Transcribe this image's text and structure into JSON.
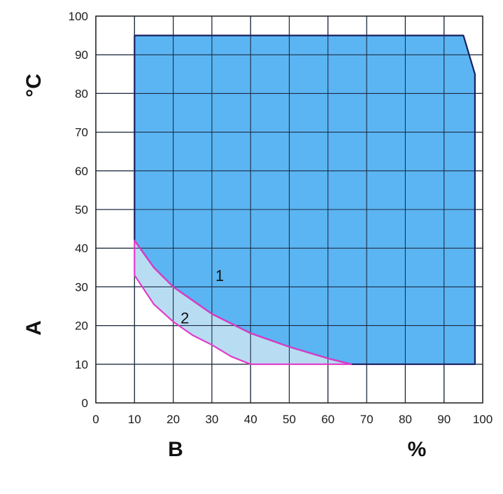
{
  "chart_data": {
    "type": "area",
    "xlabel": "B",
    "ylabel": "A",
    "x_unit": "%",
    "y_unit": "°C",
    "xlim": [
      0,
      100
    ],
    "ylim": [
      0,
      100
    ],
    "x_ticks": [
      "0",
      "10",
      "20",
      "30",
      "40",
      "50",
      "60",
      "70",
      "80",
      "90",
      "100"
    ],
    "y_ticks": [
      "0",
      "10",
      "20",
      "30",
      "40",
      "50",
      "60",
      "70",
      "80",
      "90",
      "100"
    ],
    "grid": true,
    "regions": [
      {
        "label": "1",
        "label_at": [
          32,
          33
        ],
        "fill": "#5bb5f2",
        "stroke": "#1a1f5e",
        "points": [
          [
            10,
            95
          ],
          [
            95,
            95
          ],
          [
            98,
            85
          ],
          [
            98,
            10
          ],
          [
            66,
            10
          ],
          [
            60,
            11.5
          ],
          [
            50,
            14.5
          ],
          [
            40,
            18
          ],
          [
            30,
            23
          ],
          [
            25,
            26.5
          ],
          [
            20,
            30
          ],
          [
            15,
            35
          ],
          [
            10,
            42
          ]
        ]
      },
      {
        "label": "2",
        "label_at": [
          23,
          22
        ],
        "fill": "#b8ddf2",
        "stroke": "#e03ac8",
        "points": [
          [
            10,
            42
          ],
          [
            15,
            35
          ],
          [
            20,
            30
          ],
          [
            25,
            26.5
          ],
          [
            30,
            23
          ],
          [
            40,
            18
          ],
          [
            50,
            14.5
          ],
          [
            60,
            11.5
          ],
          [
            66,
            10
          ],
          [
            40,
            10
          ],
          [
            35,
            12
          ],
          [
            30,
            15
          ],
          [
            25,
            17.5
          ],
          [
            20,
            21
          ],
          [
            15,
            25.5
          ],
          [
            10,
            33
          ]
        ]
      }
    ]
  }
}
